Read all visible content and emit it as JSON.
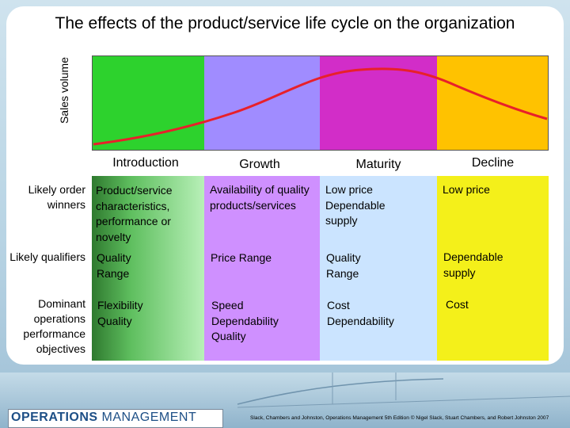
{
  "title": "The effects of the product/service life cycle on the organization",
  "y_axis_label": "Sales volume",
  "stages": [
    {
      "label": "Introduction"
    },
    {
      "label": "Growth"
    },
    {
      "label": "Maturity"
    },
    {
      "label": "Decline"
    }
  ],
  "rows": [
    {
      "label": "Likely order winners",
      "cells": [
        "Product/service characteristics, performance or novelty",
        "Availability of quality products/services",
        "Low price Dependable supply",
        "Low price"
      ]
    },
    {
      "label": "Likely qualifiers",
      "cells": [
        "Quality Range",
        "Price Range",
        "Quality Range",
        "Dependable supply"
      ]
    },
    {
      "label": "Dominant operations performance objectives",
      "cells": [
        "Flexibility Quality",
        "Speed Dependability Quality",
        "Cost Dependability",
        "Cost"
      ]
    }
  ],
  "footer": {
    "brand_bold": "OPERATIONS ",
    "brand_thin": "MANAGEMENT",
    "credit": "Slack, Chambers and Johnston, Operations Management 5th Edition © Nigel Slack, Stuart Chambers, and Robert Johnston 2007"
  },
  "colors": {
    "curve": "#e8202a",
    "introduction": "#2dd22d",
    "growth": "#a08cff",
    "maturity": "#d22dc8",
    "decline": "#ffc200"
  }
}
